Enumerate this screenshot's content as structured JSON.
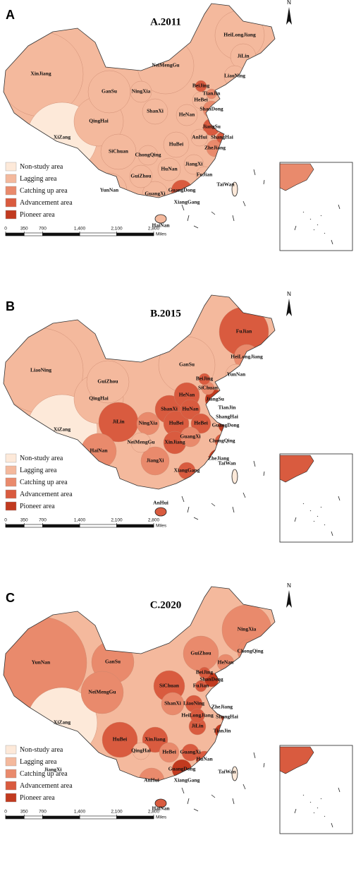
{
  "legend": [
    "Non-study area",
    "Lagging area",
    "Catching up area",
    "Advancement area",
    "Pioneer area"
  ],
  "legend_colors": [
    "#fde9d9",
    "#f4b99d",
    "#e98a6c",
    "#d95b3f",
    "#c13a1f"
  ],
  "scale": {
    "ticks": [
      0,
      350,
      700,
      {
        "value": 1400,
        "label": "1,400"
      },
      {
        "value": 2100,
        "label": "2,100"
      },
      {
        "value": 2800,
        "label": "2,800"
      }
    ],
    "unit": "Miles"
  },
  "north": "N",
  "panels": [
    {
      "letter": "A",
      "title": "A.2011",
      "regions": [
        {
          "name": "XinJiang",
          "class": 1
        },
        {
          "name": "XiZang",
          "class": 0
        },
        {
          "name": "QingHai",
          "class": 1
        },
        {
          "name": "GanSu",
          "class": 1
        },
        {
          "name": "NeiMengGu",
          "class": 1
        },
        {
          "name": "HeiLongJiang",
          "class": 1
        },
        {
          "name": "JiLin",
          "class": 1
        },
        {
          "name": "LiaoNing",
          "class": 1
        },
        {
          "name": "BeiJing",
          "class": 3
        },
        {
          "name": "TianJin",
          "class": 2
        },
        {
          "name": "HeBei",
          "class": 1
        },
        {
          "name": "ShanDong",
          "class": 2
        },
        {
          "name": "NingXia",
          "class": 1
        },
        {
          "name": "ShanXi",
          "class": 1
        },
        {
          "name": "HeNan",
          "class": 1
        },
        {
          "name": "JiangSu",
          "class": 3
        },
        {
          "name": "AnHui",
          "class": 1
        },
        {
          "name": "ShangHai",
          "class": 3
        },
        {
          "name": "HuBei",
          "class": 1
        },
        {
          "name": "ChongQing",
          "class": 1
        },
        {
          "name": "SiChuan",
          "class": 1
        },
        {
          "name": "ZheJiang",
          "class": 2
        },
        {
          "name": "JiangXi",
          "class": 1
        },
        {
          "name": "HuNan",
          "class": 1
        },
        {
          "name": "GuiZhou",
          "class": 1
        },
        {
          "name": "FuJian",
          "class": 1
        },
        {
          "name": "YunNan",
          "class": 1
        },
        {
          "name": "GuangXi",
          "class": 1
        },
        {
          "name": "GuangDong",
          "class": 3
        },
        {
          "name": "XiangGang",
          "class": 2
        },
        {
          "name": "TaiWan",
          "class": 0
        },
        {
          "name": "HaiNan",
          "class": 1
        }
      ]
    },
    {
      "letter": "B",
      "title": "B.2015",
      "regions": [
        {
          "name": "LiaoNing",
          "class": 1
        },
        {
          "name": "XiZang",
          "class": 0
        },
        {
          "name": "QingHai",
          "class": 1
        },
        {
          "name": "GuiZhou",
          "class": 1
        },
        {
          "name": "GanSu",
          "class": 1
        },
        {
          "name": "FuJian",
          "class": 3
        },
        {
          "name": "HeiLongJiang",
          "class": 2
        },
        {
          "name": "YunNan",
          "class": 1
        },
        {
          "name": "BeiJing",
          "class": 3
        },
        {
          "name": "SiChuan",
          "class": 2
        },
        {
          "name": "HeNan",
          "class": 3
        },
        {
          "name": "JiangSu",
          "class": 4
        },
        {
          "name": "TianJin",
          "class": 4
        },
        {
          "name": "ShanXi",
          "class": 3
        },
        {
          "name": "HuNan",
          "class": 3
        },
        {
          "name": "ShangHai",
          "class": 3
        },
        {
          "name": "HeBei",
          "class": 3
        },
        {
          "name": "GuangDong",
          "class": 4
        },
        {
          "name": "JiLin",
          "class": 3
        },
        {
          "name": "NingXia",
          "class": 2
        },
        {
          "name": "HuBei",
          "class": 3
        },
        {
          "name": "GuangXi",
          "class": 2
        },
        {
          "name": "NeiMengGu",
          "class": 1
        },
        {
          "name": "XinJiang",
          "class": 3
        },
        {
          "name": "ChongQing",
          "class": 3
        },
        {
          "name": "HaiNan",
          "class": 2
        },
        {
          "name": "JiangXi",
          "class": 2
        },
        {
          "name": "ZheJiang",
          "class": 4
        },
        {
          "name": "XiangGang",
          "class": 3
        },
        {
          "name": "TaiWan",
          "class": 0
        },
        {
          "name": "AnHui",
          "class": 3
        }
      ]
    },
    {
      "letter": "C",
      "title": "C.2020",
      "regions": [
        {
          "name": "YunNan",
          "class": 2
        },
        {
          "name": "XiZang",
          "class": 0
        },
        {
          "name": "GanSu",
          "class": 2
        },
        {
          "name": "NeiMengGu",
          "class": 2
        },
        {
          "name": "NingXia",
          "class": 2
        },
        {
          "name": "ChongQing",
          "class": 2
        },
        {
          "name": "GuiZhou",
          "class": 2
        },
        {
          "name": "HeNan",
          "class": 2
        },
        {
          "name": "BeiJing",
          "class": 3
        },
        {
          "name": "ShanDong",
          "class": 4
        },
        {
          "name": "FuJian",
          "class": 3
        },
        {
          "name": "SiChuan",
          "class": 3
        },
        {
          "name": "ShanXi",
          "class": 2
        },
        {
          "name": "LiaoNing",
          "class": 3
        },
        {
          "name": "ZheJiang",
          "class": 4
        },
        {
          "name": "HeiLongJiang",
          "class": 3
        },
        {
          "name": "ShangHai",
          "class": 4
        },
        {
          "name": "JiLin",
          "class": 3
        },
        {
          "name": "TianJin",
          "class": 4
        },
        {
          "name": "HuBei",
          "class": 3
        },
        {
          "name": "XinJiang",
          "class": 3
        },
        {
          "name": "QingHai",
          "class": 1
        },
        {
          "name": "HeBei",
          "class": 2
        },
        {
          "name": "GuangXi",
          "class": 3
        },
        {
          "name": "HuNan",
          "class": 3
        },
        {
          "name": "JiangXi",
          "class": 2
        },
        {
          "name": "AnHui",
          "class": 2
        },
        {
          "name": "GuangDong",
          "class": 4
        },
        {
          "name": "XiangGang",
          "class": 3
        },
        {
          "name": "TaiWan",
          "class": 0
        },
        {
          "name": "HaiNan",
          "class": 3
        }
      ]
    }
  ]
}
